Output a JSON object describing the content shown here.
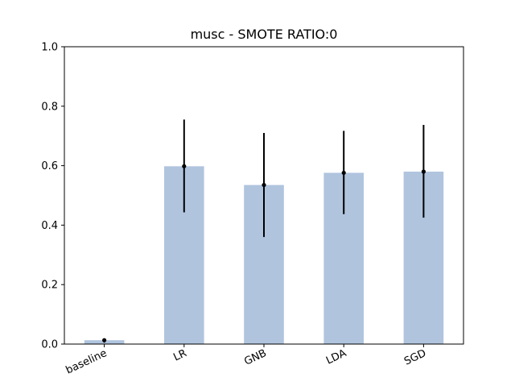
{
  "chart_data": {
    "type": "bar",
    "title": "musc - SMOTE RATIO:0",
    "xlabel": "",
    "ylabel": "",
    "categories": [
      "baseline",
      "LR",
      "GNB",
      "LDA",
      "SGD"
    ],
    "values": [
      0.013,
      0.598,
      0.535,
      0.576,
      0.58
    ],
    "error_low": [
      0.005,
      0.443,
      0.36,
      0.437,
      0.425
    ],
    "error_high": [
      0.018,
      0.755,
      0.71,
      0.717,
      0.737
    ],
    "ylim": [
      0,
      1.0
    ],
    "yticks": [
      "0.0",
      "0.2",
      "0.4",
      "0.6",
      "0.8",
      "1.0"
    ],
    "grid": false,
    "bar_color": "#b0c4de",
    "error_color": "#000000",
    "tick_label_rotation_deg": -25
  }
}
